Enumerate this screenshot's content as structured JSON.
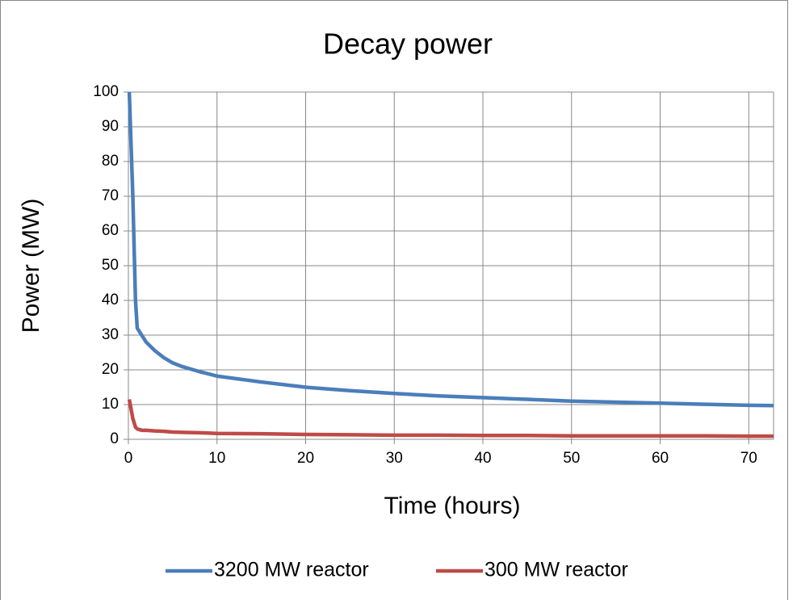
{
  "chart_data": {
    "type": "line",
    "title": "Decay power",
    "xlabel": "Time (hours)",
    "ylabel": "Power (MW)",
    "x": [
      0.1,
      0.5,
      0.8,
      1,
      1.5,
      2,
      3,
      4,
      5,
      6,
      8,
      10,
      15,
      20,
      25,
      30,
      35,
      40,
      45,
      50,
      55,
      60,
      65,
      70,
      72.8
    ],
    "series": [
      {
        "name": "3200 MW reactor",
        "color": "#4a7ebb",
        "values": [
          100,
          70,
          40,
          32,
          30,
          28,
          25.5,
          23.5,
          22,
          21,
          19.5,
          18.2,
          16.5,
          15,
          14,
          13.2,
          12.5,
          12,
          11.5,
          11,
          10.7,
          10.4,
          10.1,
          9.8,
          9.7
        ]
      },
      {
        "name": "300 MW reactor",
        "color": "#be4b48",
        "values": [
          11.5,
          6,
          3.5,
          3,
          2.6,
          2.6,
          2.4,
          2.3,
          2.1,
          2,
          1.9,
          1.7,
          1.6,
          1.4,
          1.3,
          1.2,
          1.2,
          1.1,
          1.1,
          1,
          1,
          1,
          1,
          0.9,
          0.9
        ]
      }
    ],
    "xlim": [
      0,
      72.8
    ],
    "xticks": [
      0,
      10,
      20,
      30,
      40,
      50,
      60,
      70
    ],
    "ylim": [
      0,
      100
    ],
    "yticks": [
      0,
      10,
      20,
      30,
      40,
      50,
      60,
      70,
      80,
      90,
      100
    ],
    "grid": true,
    "legend": "bottom"
  }
}
